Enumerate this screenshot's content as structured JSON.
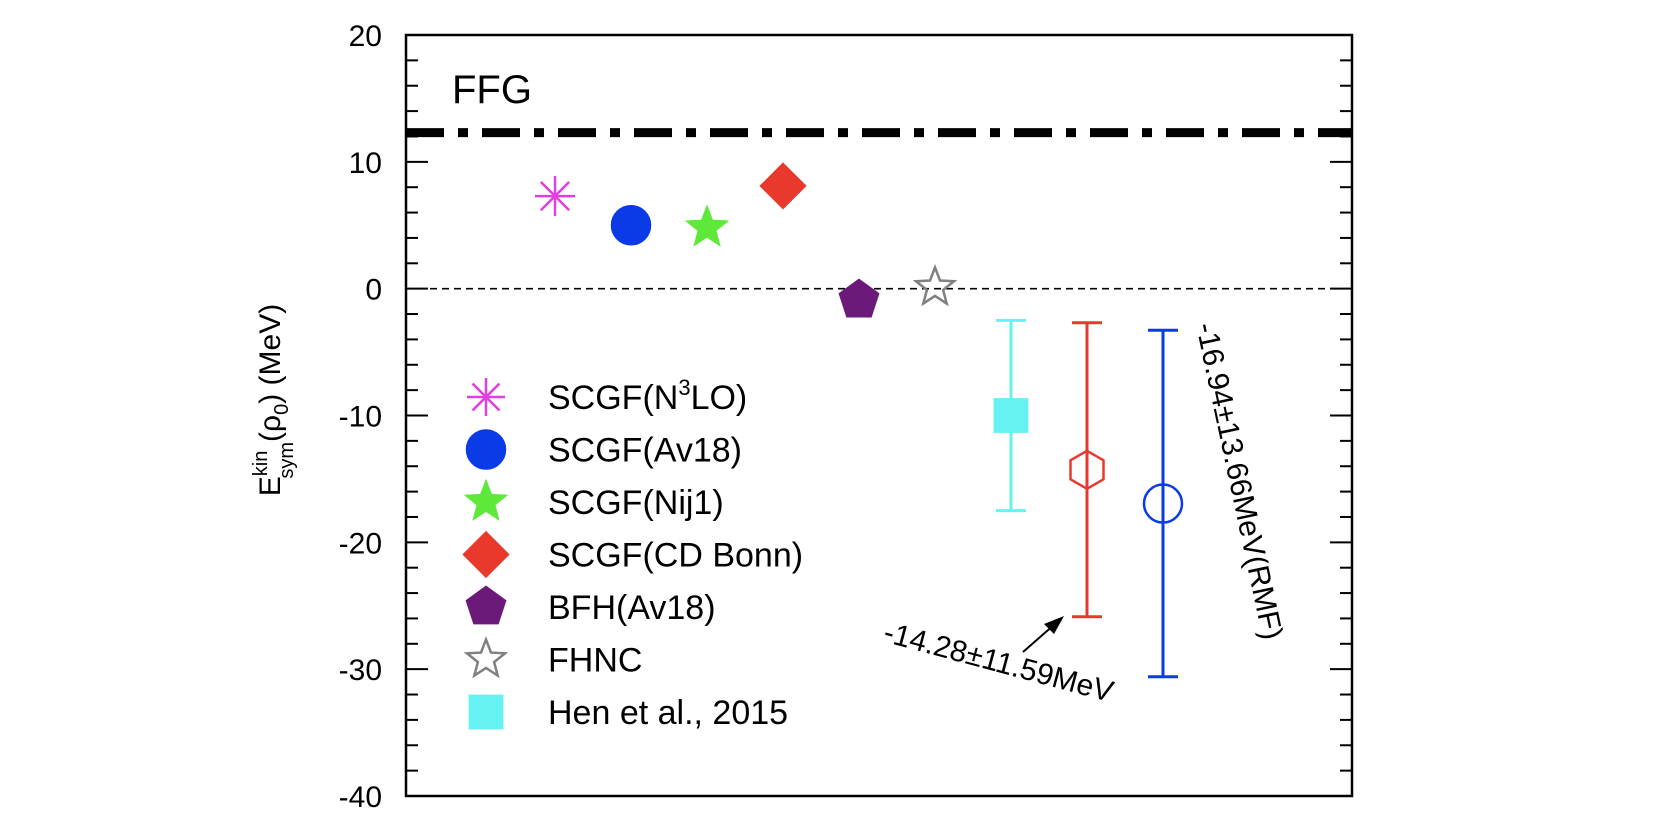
{
  "chart_data": {
    "type": "scatter",
    "ylabel": {
      "main": "E",
      "sup": "kin",
      "sub": "sym",
      "mid": "(ρ",
      "sub2": "0",
      "end": ") (MeV)"
    },
    "ylim": [
      -40,
      20
    ],
    "yticks": [
      20,
      10,
      0,
      -10,
      -20,
      -30,
      -40
    ],
    "yticks_minor_step": 2,
    "grid": false,
    "legend_position": "left-center",
    "reference_lines": [
      {
        "name": "FFG",
        "y": 12.3,
        "style": "dash-dot",
        "color": "#000000",
        "label": "FFG"
      },
      {
        "name": "zero",
        "y": 0,
        "style": "dashed",
        "color": "#000000"
      }
    ],
    "points": [
      {
        "id": "scgf-n3lo",
        "x": 1,
        "y": 7.3,
        "marker": "asterisk",
        "color": "#e040e0",
        "filled": false
      },
      {
        "id": "scgf-av18",
        "x": 2,
        "y": 5.0,
        "marker": "circle",
        "color": "#0a3be6",
        "filled": true
      },
      {
        "id": "scgf-nij1",
        "x": 3,
        "y": 4.8,
        "marker": "star",
        "color": "#5ee83a",
        "filled": true
      },
      {
        "id": "scgf-cdbonn",
        "x": 4,
        "y": 8.1,
        "marker": "diamond",
        "color": "#e8392c",
        "filled": true
      },
      {
        "id": "bfh-av18",
        "x": 5,
        "y": -0.9,
        "marker": "pentagon",
        "color": "#6b1a7a",
        "filled": true
      },
      {
        "id": "fhnc",
        "x": 6,
        "y": 0.1,
        "marker": "star",
        "color": "#808080",
        "filled": false
      },
      {
        "id": "hen-2015",
        "x": 7,
        "y": -10.0,
        "marker": "square",
        "color": "#66f2f2",
        "filled": true,
        "err_low": -17.5,
        "err_high": -2.5
      },
      {
        "id": "est-1",
        "x": 8,
        "y": -14.28,
        "marker": "hexagon",
        "color": "#e8392c",
        "filled": false,
        "err_low": -25.87,
        "err_high": -2.69
      },
      {
        "id": "est-rmf",
        "x": 9,
        "y": -16.94,
        "marker": "circle",
        "color": "#0a3be6",
        "filled": false,
        "err_low": -30.6,
        "err_high": -3.28
      }
    ],
    "legend": [
      {
        "marker": "asterisk",
        "color": "#e040e0",
        "filled": false,
        "text": "SCGF(N",
        "sup": "3",
        "text2": "LO)"
      },
      {
        "marker": "circle",
        "color": "#0a3be6",
        "filled": true,
        "text": "SCGF(Av18)"
      },
      {
        "marker": "star",
        "color": "#5ee83a",
        "filled": true,
        "text": "SCGF(Nij1)"
      },
      {
        "marker": "diamond",
        "color": "#e8392c",
        "filled": true,
        "text": "SCGF(CD Bonn)"
      },
      {
        "marker": "pentagon",
        "color": "#6b1a7a",
        "filled": true,
        "text": "BFH(Av18)"
      },
      {
        "marker": "star",
        "color": "#808080",
        "filled": false,
        "text": "FHNC"
      },
      {
        "marker": "square",
        "color": "#66f2f2",
        "filled": true,
        "text": "Hen et al., 2015"
      }
    ],
    "annotations": [
      {
        "text": "-14.28±11.59MeV",
        "target_point": "est-1"
      },
      {
        "text": "-16.94±13.66MeV(RMF)",
        "target_point": "est-rmf"
      }
    ]
  }
}
